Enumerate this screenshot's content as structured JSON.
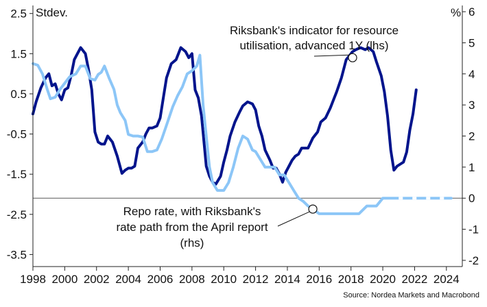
{
  "chart_data": {
    "type": "line",
    "left_unit": "Stdev.",
    "right_unit": "%",
    "source": "Source: Nordea Markets and Macrobond",
    "x_range": [
      1998,
      2025
    ],
    "x_ticks": [
      1998,
      2000,
      2002,
      2004,
      2006,
      2008,
      2010,
      2012,
      2014,
      2016,
      2018,
      2020,
      2022,
      2024
    ],
    "x_tick_labels": [
      "1998",
      "2000",
      "2002",
      "2004",
      "2006",
      "2008",
      "2010",
      "2012",
      "2014",
      "2016",
      "2018",
      "2020",
      "2022",
      "2024"
    ],
    "y_left_range": [
      -3.8,
      2.7
    ],
    "y_left_ticks": [
      2.5,
      1.5,
      0.5,
      -0.5,
      -1.5,
      -2.5,
      -3.5
    ],
    "y_left_tick_labels": [
      "2.5",
      "1.5",
      "0.5",
      "-0.5",
      "-1.5",
      "-2.5",
      "-3.5"
    ],
    "y_right_range": [
      -2.2,
      6.2
    ],
    "y_right_ticks": [
      6,
      5,
      4,
      3,
      2,
      1,
      0,
      -1,
      -2
    ],
    "y_right_tick_labels": [
      "6",
      "5",
      "4",
      "3",
      "2",
      "1",
      "0",
      "-1",
      "-2"
    ],
    "zero_line_right": 0,
    "series": [
      {
        "name": "Riksbank's indicator for resource utilisation, advanced 1Y (lhs)",
        "label_lines": [
          "Riksbank's indicator for resource",
          "utilisation, advanced 1Y (lhs)"
        ],
        "axis": "left",
        "color": "#00148c",
        "x": [
          1998.0,
          1998.2,
          1998.5,
          1998.8,
          1999.0,
          1999.2,
          1999.4,
          1999.6,
          1999.8,
          2000.0,
          2000.2,
          2000.4,
          2000.6,
          2000.8,
          2001.0,
          2001.3,
          2001.5,
          2001.7,
          2001.9,
          2002.1,
          2002.3,
          2002.5,
          2002.7,
          2003.0,
          2003.3,
          2003.6,
          2003.8,
          2004.0,
          2004.2,
          2004.4,
          2004.6,
          2004.9,
          2005.1,
          2005.3,
          2005.5,
          2005.8,
          2006.0,
          2006.2,
          2006.4,
          2006.7,
          2007.0,
          2007.3,
          2007.6,
          2007.8,
          2008.0,
          2008.2,
          2008.4,
          2008.6,
          2008.9,
          2009.1,
          2009.3,
          2009.5,
          2009.8,
          2010.0,
          2010.2,
          2010.4,
          2010.7,
          2011.0,
          2011.2,
          2011.5,
          2011.8,
          2012.0,
          2012.2,
          2012.4,
          2012.6,
          2012.9,
          2013.1,
          2013.3,
          2013.5,
          2013.7,
          2013.9,
          2014.1,
          2014.3,
          2014.5,
          2014.7,
          2014.9,
          2015.1,
          2015.3,
          2015.6,
          2015.9,
          2016.1,
          2016.4,
          2016.7,
          2016.9,
          2017.1,
          2017.4,
          2017.7,
          2017.9,
          2018.1,
          2018.3,
          2018.6,
          2018.9,
          2019.1,
          2019.4,
          2019.6,
          2019.9,
          2020.1,
          2020.3,
          2020.5,
          2020.7,
          2020.9,
          2021.1,
          2021.3,
          2021.5,
          2021.7,
          2021.9,
          2022.1
        ],
        "y": [
          0.0,
          0.3,
          0.65,
          0.9,
          1.0,
          0.7,
          0.75,
          0.5,
          0.35,
          0.6,
          0.65,
          0.95,
          1.35,
          1.5,
          1.65,
          1.5,
          1.1,
          0.6,
          -0.45,
          -0.7,
          -0.75,
          -0.75,
          -0.55,
          -0.7,
          -1.05,
          -1.48,
          -1.4,
          -1.35,
          -1.35,
          -1.3,
          -0.85,
          -0.7,
          -0.5,
          -0.35,
          -0.35,
          -0.3,
          -0.1,
          0.4,
          0.9,
          1.25,
          1.35,
          1.65,
          1.55,
          1.4,
          1.5,
          0.6,
          0.4,
          -0.05,
          -1.3,
          -1.55,
          -1.7,
          -1.75,
          -1.55,
          -1.2,
          -0.9,
          -0.55,
          -0.2,
          0.05,
          0.2,
          0.3,
          0.25,
          0.1,
          -0.3,
          -0.55,
          -0.9,
          -1.15,
          -1.35,
          -1.35,
          -1.5,
          -1.7,
          -1.45,
          -1.3,
          -1.15,
          -1.05,
          -1.0,
          -0.85,
          -0.85,
          -0.85,
          -0.6,
          -0.45,
          -0.2,
          -0.1,
          0.15,
          0.35,
          0.55,
          0.9,
          1.35,
          1.45,
          1.55,
          1.6,
          1.65,
          1.6,
          1.65,
          1.55,
          1.3,
          0.95,
          0.55,
          -0.05,
          -0.9,
          -1.4,
          -1.3,
          -1.25,
          -1.2,
          -0.95,
          -0.4,
          0.0,
          0.6
        ]
      },
      {
        "name": "Repo rate, with Riksbank's rate path from the April report (rhs)",
        "label_lines": [
          "Repo rate, with Riksbank's",
          "rate path from the April report",
          "(rhs)"
        ],
        "axis": "right",
        "color": "#8cc6f7",
        "x": [
          1998.0,
          1998.3,
          1998.6,
          1998.9,
          1999.1,
          1999.4,
          1999.7,
          2000.0,
          2000.3,
          2000.7,
          2001.0,
          2001.3,
          2001.6,
          2001.9,
          2002.1,
          2002.3,
          2002.5,
          2002.8,
          2003.1,
          2003.3,
          2003.5,
          2003.8,
          2004.0,
          2004.3,
          2004.6,
          2004.9,
          2005.2,
          2005.5,
          2005.8,
          2006.1,
          2006.4,
          2006.8,
          2007.1,
          2007.4,
          2007.7,
          2008.0,
          2008.3,
          2008.5,
          2008.7,
          2008.9,
          2009.1,
          2009.3,
          2009.6,
          2010.0,
          2010.3,
          2010.6,
          2010.9,
          2011.2,
          2011.5,
          2011.8,
          2012.0,
          2012.3,
          2012.6,
          2012.9,
          2013.2,
          2013.5,
          2013.8,
          2014.1,
          2014.4,
          2014.7,
          2015.0,
          2015.3,
          2015.6,
          2016.0,
          2016.5,
          2017.0,
          2017.5,
          2018.0,
          2018.5,
          2019.0,
          2019.3,
          2019.6,
          2020.0,
          2020.5,
          2021.0,
          2021.5,
          2022.0,
          2022.5,
          2023.0,
          2023.5,
          2024.0,
          2024.3
        ],
        "y": [
          4.33,
          4.28,
          4.0,
          3.5,
          3.2,
          3.25,
          3.5,
          3.7,
          3.9,
          4.0,
          4.25,
          4.25,
          3.85,
          3.8,
          3.98,
          4.05,
          4.25,
          3.85,
          3.5,
          3.0,
          2.75,
          2.5,
          2.05,
          2.0,
          2.0,
          1.97,
          1.5,
          1.5,
          1.55,
          1.9,
          2.35,
          2.95,
          3.3,
          3.58,
          4.0,
          4.1,
          4.25,
          4.6,
          3.0,
          2.0,
          1.0,
          0.5,
          0.25,
          0.25,
          0.5,
          1.0,
          1.6,
          2.0,
          1.9,
          1.55,
          1.5,
          1.25,
          1.0,
          1.0,
          1.0,
          0.75,
          0.75,
          0.5,
          0.25,
          0.0,
          -0.1,
          -0.25,
          -0.35,
          -0.5,
          -0.5,
          -0.5,
          -0.5,
          -0.5,
          -0.5,
          -0.25,
          -0.25,
          -0.25,
          0.0,
          0.0,
          0.0,
          0.0,
          0.0,
          0.0,
          0.0,
          0.0,
          0.0,
          0.0
        ]
      }
    ],
    "annotations": [
      {
        "series": 0,
        "x": 2018.1,
        "y": 1.4
      },
      {
        "series": 1,
        "x": 2015.6,
        "y": -0.35
      }
    ]
  }
}
